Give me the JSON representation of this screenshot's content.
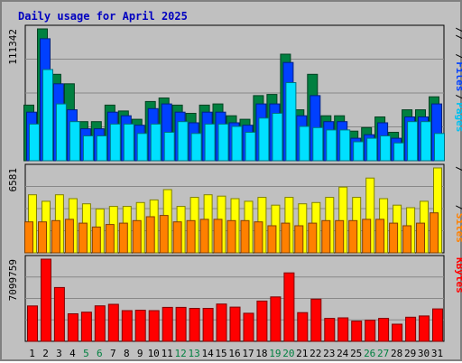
{
  "chart_data": {
    "type": "bar",
    "title": "Daily usage for April 2025",
    "categories": [
      "1",
      "2",
      "3",
      "4",
      "5",
      "6",
      "7",
      "8",
      "9",
      "10",
      "11",
      "12",
      "13",
      "14",
      "15",
      "16",
      "17",
      "18",
      "19",
      "20",
      "21",
      "22",
      "23",
      "24",
      "25",
      "26",
      "27",
      "28",
      "29",
      "30",
      "31"
    ],
    "weekend_days": [
      5,
      6,
      12,
      13,
      19,
      20,
      26,
      27
    ],
    "panels": [
      {
        "name": "top",
        "ymax_label": "111342",
        "ymax": 111342,
        "legend": [
          {
            "text": "Pages",
            "color": "#00c0f0"
          },
          {
            "text": "Files",
            "color": "#0040ff"
          },
          {
            "text": "Hits",
            "color": "#008040"
          }
        ],
        "series": [
          {
            "name": "Hits",
            "color": "#008040",
            "values": [
              47000,
              111342,
              73000,
              65000,
              33000,
              33000,
              47000,
              42000,
              35000,
              50000,
              53000,
              47000,
              40000,
              47000,
              48000,
              38000,
              35000,
              55000,
              56000,
              90000,
              43000,
              73000,
              38000,
              38000,
              25000,
              28000,
              37000,
              24000,
              43000,
              43000,
              54000
            ]
          },
          {
            "name": "Files",
            "color": "#0040ff",
            "values": [
              41000,
              103000,
              65000,
              43000,
              27000,
              27000,
              41000,
              38000,
              30000,
              44000,
              48000,
              41000,
              32000,
              41000,
              41000,
              32000,
              30000,
              48000,
              48000,
              83000,
              38000,
              55000,
              33000,
              33000,
              19000,
              22000,
              32000,
              19000,
              37000,
              37000,
              48000
            ]
          },
          {
            "name": "Pages",
            "color": "#00e0ff",
            "values": [
              31000,
              77000,
              48000,
              33000,
              21000,
              21000,
              31000,
              31000,
              23000,
              31000,
              24000,
              33000,
              23000,
              31000,
              31000,
              29000,
              24000,
              36000,
              40000,
              66000,
              29000,
              28000,
              26000,
              26000,
              16000,
              19000,
              21000,
              15000,
              33000,
              33000,
              23000
            ]
          }
        ]
      },
      {
        "name": "middle",
        "ymax_label": "6581",
        "ymax": 6581,
        "legend": [
          {
            "text": "Sites",
            "color": "#ff8000"
          },
          {
            "text": "Visits",
            "color": "#f0f000"
          }
        ],
        "series": [
          {
            "name": "Visits",
            "color": "#ffff00",
            "values": [
              4500,
              4000,
              4500,
              4200,
              3800,
              3400,
              3600,
              3600,
              3900,
              4100,
              4900,
              3600,
              4300,
              4500,
              4400,
              4200,
              4000,
              4300,
              3700,
              4300,
              3800,
              3900,
              4300,
              5100,
              4300,
              5800,
              4200,
              3700,
              3500,
              4000,
              6581
            ]
          },
          {
            "name": "Sites",
            "color": "#ff8000",
            "values": [
              2400,
              2400,
              2500,
              2600,
              2300,
              2000,
              2200,
              2300,
              2500,
              2800,
              2900,
              2400,
              2500,
              2600,
              2600,
              2500,
              2500,
              2400,
              2100,
              2300,
              2100,
              2300,
              2500,
              2500,
              2500,
              2600,
              2600,
              2300,
              2100,
              2300,
              3100
            ]
          }
        ]
      },
      {
        "name": "bottom",
        "ymax_label": "7099759",
        "ymax": 7099759,
        "legend": [
          {
            "text": "KBytes",
            "color": "#ff0000"
          }
        ],
        "series": [
          {
            "name": "KBytes",
            "color": "#ff0000",
            "values": [
              3060000,
              7099759,
              4650000,
              2380000,
              2520000,
              3070000,
              3200000,
              2650000,
              2680000,
              2650000,
              2930000,
              2930000,
              2850000,
              2850000,
              3220000,
              2960000,
              2430000,
              3480000,
              3840000,
              5910000,
              2480000,
              3640000,
              1980000,
              2030000,
              1750000,
              1820000,
              1980000,
              1480000,
              2080000,
              2190000,
              2800000
            ]
          }
        ]
      }
    ]
  }
}
